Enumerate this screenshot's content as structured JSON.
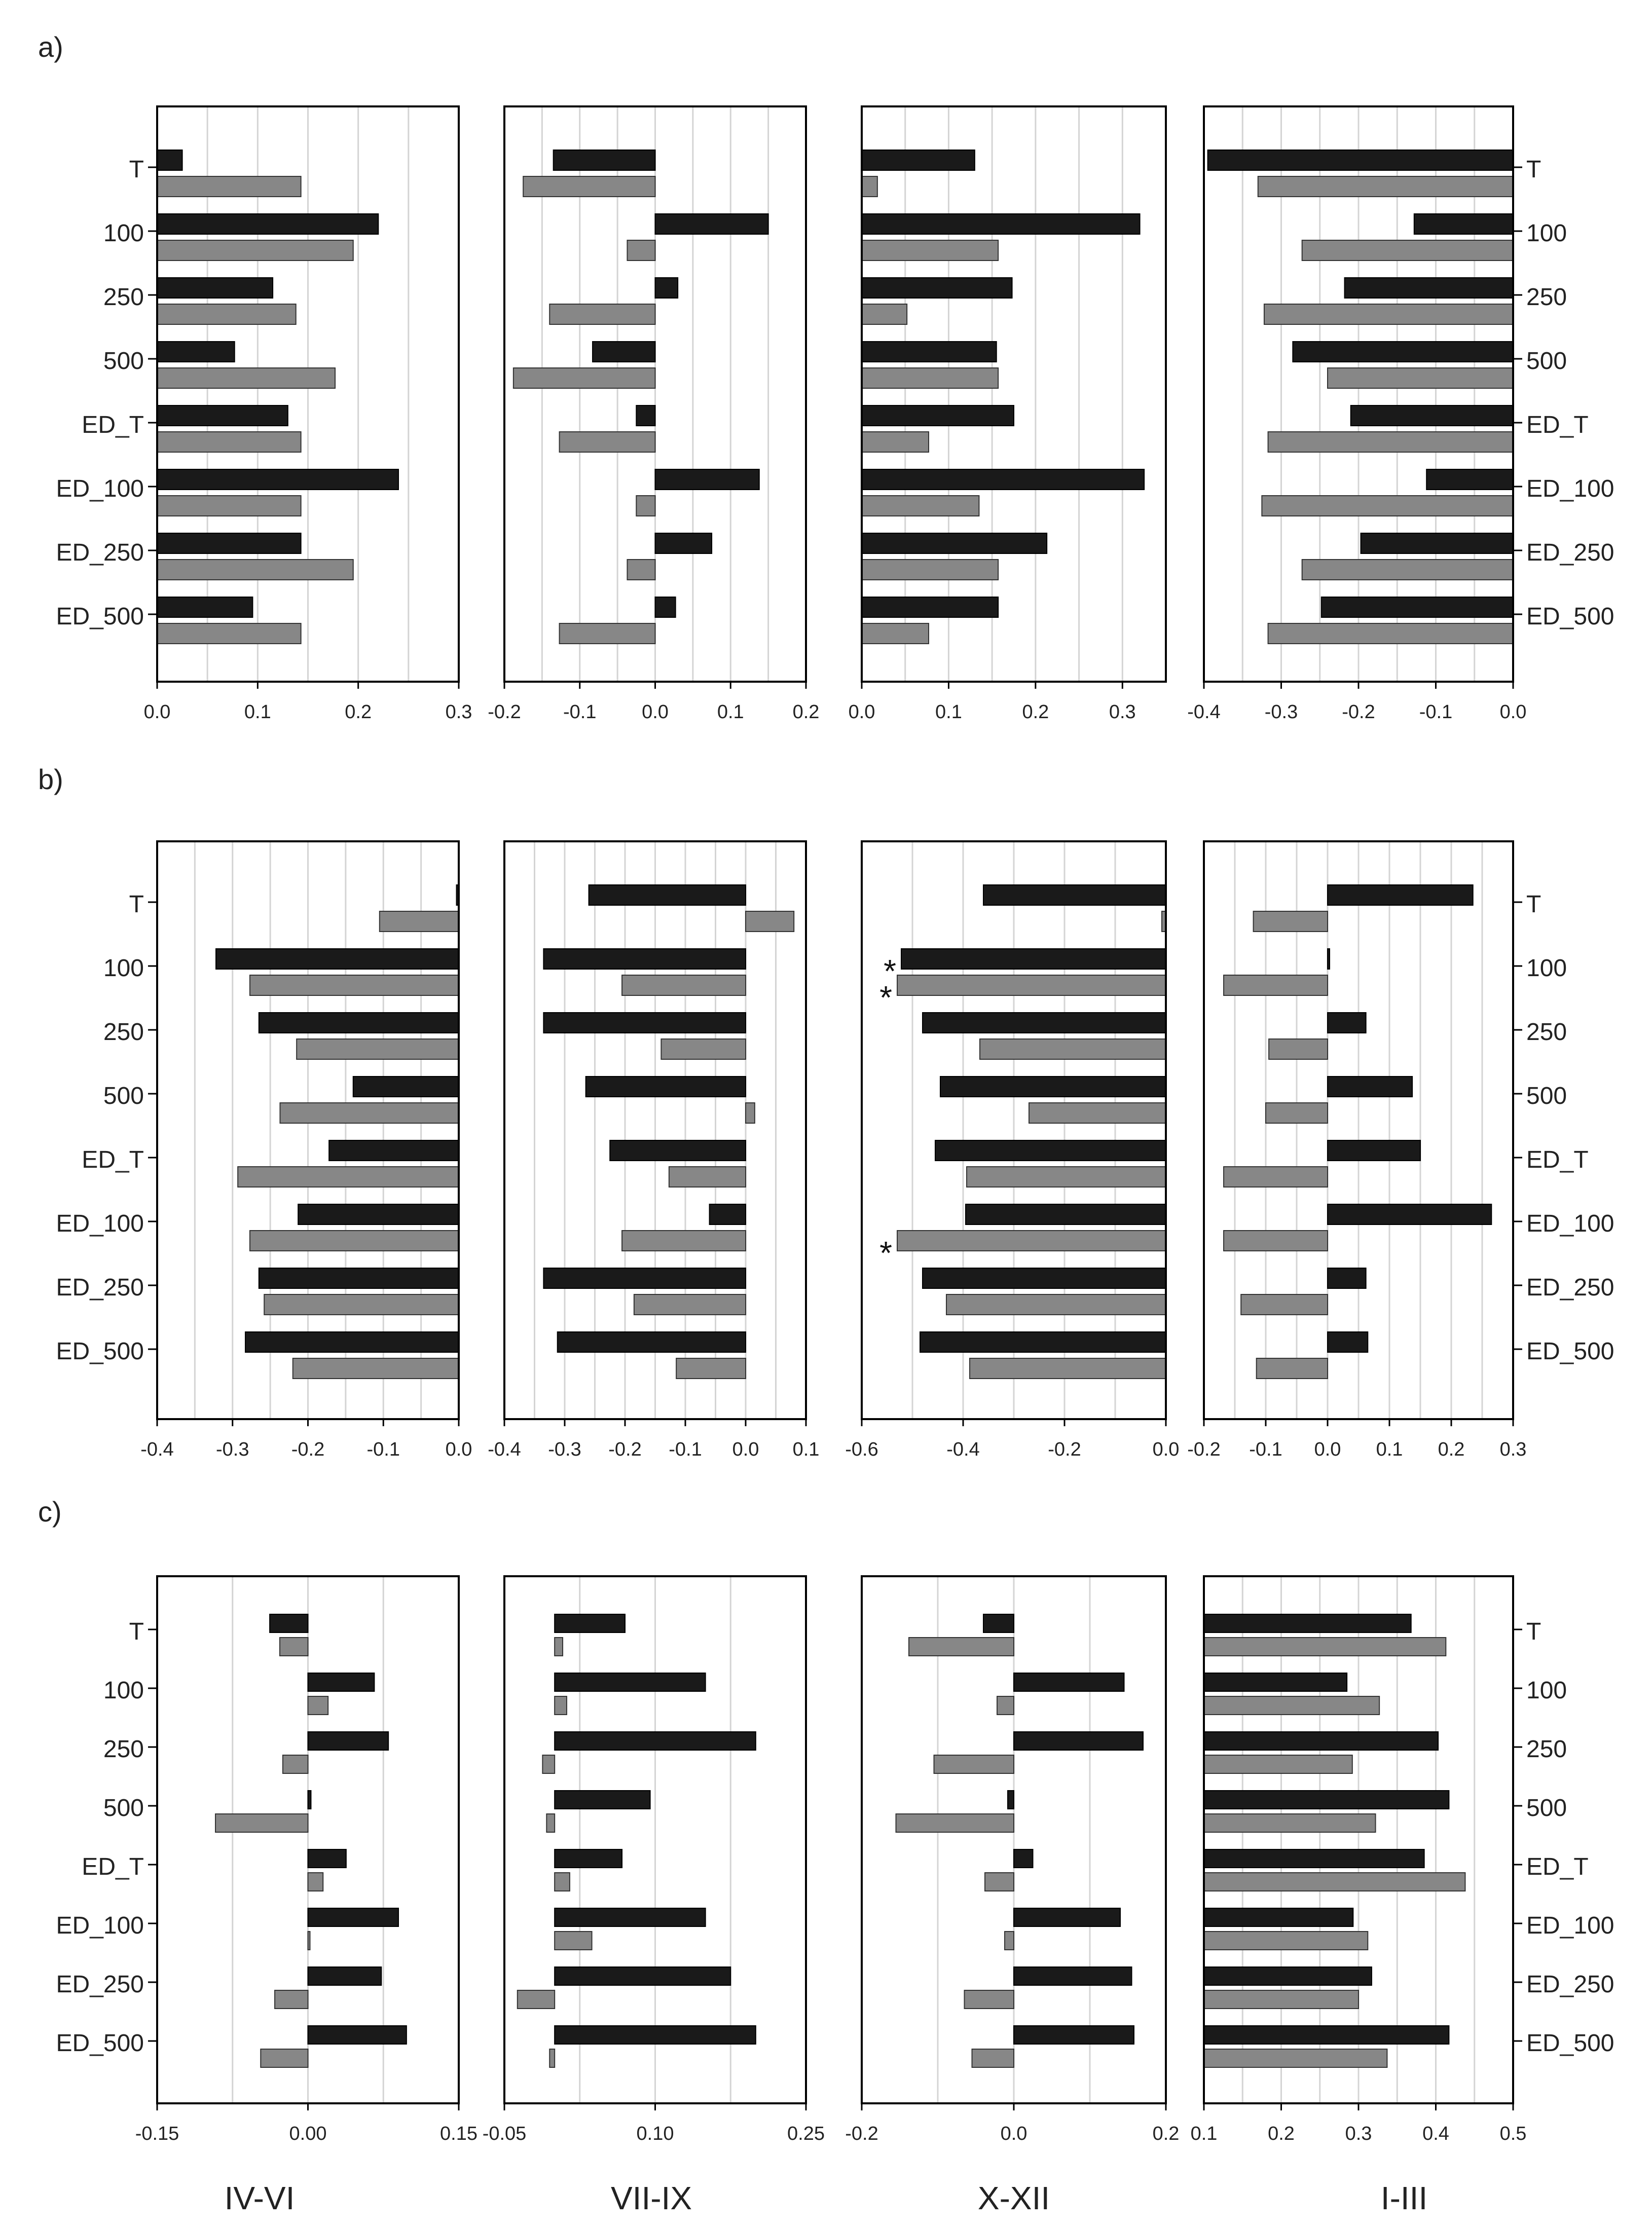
{
  "figure": {
    "row_labels": [
      "a)",
      "b)",
      "c)"
    ],
    "season_labels": [
      "IV-VI",
      "VII-IX",
      "X-XII",
      "I-III"
    ]
  },
  "colors": {
    "series_black": "#1a1a1a",
    "series_gray": "#878787",
    "grid": "#d4d4d4",
    "frame": "#000000"
  },
  "chart_data": [
    {
      "type": "bar",
      "orientation": "horizontal",
      "row": "a",
      "season": "IV-VI",
      "categories": [
        "T",
        "100",
        "250",
        "500",
        "ED_T",
        "ED_100",
        "ED_250",
        "ED_500"
      ],
      "xlim": [
        0,
        0.3
      ],
      "xticks": [
        "0.0",
        "0.1",
        "0.2",
        "0.3"
      ],
      "series": [
        {
          "color": "black",
          "values": [
            0.025,
            0.22,
            0.115,
            0.077,
            0.13,
            0.24,
            0.143,
            0.095
          ]
        },
        {
          "color": "gray",
          "values": [
            0.143,
            0.195,
            0.138,
            0.177,
            0.143,
            0.143,
            0.195,
            0.143
          ]
        }
      ],
      "grid": true,
      "category_labels_side": "left"
    },
    {
      "type": "bar",
      "orientation": "horizontal",
      "row": "a",
      "season": "VII-IX",
      "categories": [
        "T",
        "100",
        "250",
        "500",
        "ED_T",
        "ED_100",
        "ED_250",
        "ED_500"
      ],
      "xlim": [
        -0.2,
        0.2
      ],
      "xticks": [
        "-0.2",
        "-0.1",
        "0.0",
        "0.1",
        "0.2"
      ],
      "series": [
        {
          "color": "black",
          "values": [
            -0.135,
            0.15,
            0.03,
            -0.083,
            -0.025,
            0.138,
            0.075,
            0.027
          ]
        },
        {
          "color": "gray",
          "values": [
            -0.175,
            -0.037,
            -0.14,
            -0.188,
            -0.127,
            -0.025,
            -0.037,
            -0.127
          ]
        }
      ],
      "grid": true,
      "category_labels_side": "none"
    },
    {
      "type": "bar",
      "orientation": "horizontal",
      "row": "a",
      "season": "X-XII",
      "categories": [
        "T",
        "100",
        "250",
        "500",
        "ED_T",
        "ED_100",
        "ED_250",
        "ED_500"
      ],
      "xlim": [
        0,
        0.35
      ],
      "xticks": [
        "0.0",
        "0.1",
        "0.2",
        "0.3"
      ],
      "series": [
        {
          "color": "black",
          "values": [
            0.13,
            0.32,
            0.173,
            0.155,
            0.175,
            0.325,
            0.213,
            0.157
          ]
        },
        {
          "color": "gray",
          "values": [
            0.018,
            0.157,
            0.052,
            0.157,
            0.077,
            0.135,
            0.157,
            0.077
          ]
        }
      ],
      "grid": true,
      "category_labels_side": "none"
    },
    {
      "type": "bar",
      "orientation": "horizontal",
      "row": "a",
      "season": "I-III",
      "categories": [
        "T",
        "100",
        "250",
        "500",
        "ED_T",
        "ED_100",
        "ED_250",
        "ED_500"
      ],
      "xlim": [
        -0.4,
        0
      ],
      "xticks": [
        "-0.4",
        "-0.3",
        "-0.2",
        "-0.1",
        "0.0"
      ],
      "series": [
        {
          "color": "black",
          "values": [
            -0.395,
            -0.128,
            -0.218,
            -0.285,
            -0.21,
            -0.112,
            -0.197,
            -0.248
          ]
        },
        {
          "color": "gray",
          "values": [
            -0.33,
            -0.273,
            -0.322,
            -0.24,
            -0.317,
            -0.325,
            -0.273,
            -0.317
          ]
        }
      ],
      "grid": true,
      "category_labels_side": "right"
    },
    {
      "type": "bar",
      "orientation": "horizontal",
      "row": "b",
      "season": "IV-VI",
      "categories": [
        "T",
        "100",
        "250",
        "500",
        "ED_T",
        "ED_100",
        "ED_250",
        "ED_500"
      ],
      "xlim": [
        -0.4,
        0
      ],
      "xticks": [
        "-0.4",
        "-0.3",
        "-0.2",
        "-0.1",
        "0.0"
      ],
      "series": [
        {
          "color": "black",
          "values": [
            -0.003,
            -0.322,
            -0.265,
            -0.14,
            -0.172,
            -0.213,
            -0.265,
            -0.283
          ]
        },
        {
          "color": "gray",
          "values": [
            -0.105,
            -0.277,
            -0.215,
            -0.237,
            -0.293,
            -0.277,
            -0.258,
            -0.22
          ]
        }
      ],
      "grid": true,
      "category_labels_side": "left"
    },
    {
      "type": "bar",
      "orientation": "horizontal",
      "row": "b",
      "season": "VII-IX",
      "categories": [
        "T",
        "100",
        "250",
        "500",
        "ED_T",
        "ED_100",
        "ED_250",
        "ED_500"
      ],
      "xlim": [
        -0.4,
        0.1
      ],
      "xticks": [
        "-0.4",
        "-0.3",
        "-0.2",
        "-0.1",
        "0.0",
        "0.1"
      ],
      "series": [
        {
          "color": "black",
          "values": [
            -0.26,
            -0.335,
            -0.335,
            -0.265,
            -0.225,
            -0.06,
            -0.335,
            -0.312
          ]
        },
        {
          "color": "gray",
          "values": [
            0.08,
            -0.205,
            -0.14,
            0.015,
            -0.127,
            -0.205,
            -0.185,
            -0.115
          ]
        }
      ],
      "grid": true,
      "category_labels_side": "none"
    },
    {
      "type": "bar",
      "orientation": "horizontal",
      "row": "b",
      "season": "X-XII",
      "categories": [
        "T",
        "100",
        "250",
        "500",
        "ED_T",
        "ED_100",
        "ED_250",
        "ED_500"
      ],
      "xlim": [
        -0.6,
        0
      ],
      "xticks": [
        "-0.6",
        "-0.4",
        "-0.2",
        "0.0"
      ],
      "series": [
        {
          "color": "black",
          "values": [
            -0.36,
            -0.522,
            -0.48,
            -0.445,
            -0.455,
            -0.395,
            -0.48,
            -0.485
          ]
        },
        {
          "color": "gray",
          "values": [
            -0.008,
            -0.53,
            -0.367,
            -0.27,
            -0.393,
            -0.53,
            -0.433,
            -0.387
          ]
        }
      ],
      "annotations": [
        {
          "text": "*",
          "category": "100",
          "series": "black"
        },
        {
          "text": "*",
          "category": "100",
          "series": "gray"
        },
        {
          "text": "*",
          "category": "ED_100",
          "series": "gray"
        }
      ],
      "grid": true,
      "category_labels_side": "none"
    },
    {
      "type": "bar",
      "orientation": "horizontal",
      "row": "b",
      "season": "I-III",
      "categories": [
        "T",
        "100",
        "250",
        "500",
        "ED_T",
        "ED_100",
        "ED_250",
        "ED_500"
      ],
      "xlim": [
        -0.2,
        0.3
      ],
      "xticks": [
        "-0.2",
        "-0.1",
        "0.0",
        "0.1",
        "0.2",
        "0.3"
      ],
      "series": [
        {
          "color": "black",
          "values": [
            0.235,
            0.003,
            0.062,
            0.137,
            0.15,
            0.265,
            0.062,
            0.065
          ]
        },
        {
          "color": "gray",
          "values": [
            -0.12,
            -0.168,
            -0.095,
            -0.1,
            -0.168,
            -0.168,
            -0.14,
            -0.115
          ]
        }
      ],
      "grid": true,
      "category_labels_side": "right"
    },
    {
      "type": "bar",
      "orientation": "horizontal",
      "row": "c",
      "season": "IV-VI",
      "categories": [
        "T",
        "100",
        "250",
        "500",
        "ED_T",
        "ED_100",
        "ED_250",
        "ED_500"
      ],
      "xlim": [
        -0.15,
        0.15
      ],
      "xticks": [
        "-0.15",
        "0.00",
        "0.15"
      ],
      "series": [
        {
          "color": "black",
          "values": [
            -0.038,
            0.066,
            0.08,
            0.003,
            0.038,
            0.09,
            0.073,
            0.098
          ]
        },
        {
          "color": "gray",
          "values": [
            -0.028,
            0.02,
            -0.025,
            -0.092,
            0.015,
            0.002,
            -0.033,
            -0.047
          ]
        }
      ],
      "grid": true,
      "category_labels_side": "left"
    },
    {
      "type": "bar",
      "orientation": "horizontal",
      "row": "c",
      "season": "VII-IX",
      "categories": [
        "T",
        "100",
        "250",
        "500",
        "ED_T",
        "ED_100",
        "ED_250",
        "ED_500"
      ],
      "xlim": [
        -0.05,
        0.25
      ],
      "xticks": [
        "-0.05",
        "0.10",
        "0.25"
      ],
      "series": [
        {
          "color": "black",
          "values": [
            0.07,
            0.15,
            0.2,
            0.095,
            0.067,
            0.15,
            0.175,
            0.2
          ]
        },
        {
          "color": "gray",
          "values": [
            0.008,
            0.012,
            -0.012,
            -0.008,
            0.015,
            0.037,
            -0.037,
            -0.005
          ]
        }
      ],
      "grid": true,
      "category_labels_side": "none"
    },
    {
      "type": "bar",
      "orientation": "horizontal",
      "row": "c",
      "season": "X-XII",
      "categories": [
        "T",
        "100",
        "250",
        "500",
        "ED_T",
        "ED_100",
        "ED_250",
        "ED_500"
      ],
      "xlim": [
        -0.2,
        0.2
      ],
      "xticks": [
        "-0.2",
        "0.0",
        "0.2"
      ],
      "series": [
        {
          "color": "black",
          "values": [
            -0.04,
            0.145,
            0.17,
            -0.008,
            0.025,
            0.14,
            0.155,
            0.158
          ]
        },
        {
          "color": "gray",
          "values": [
            -0.138,
            -0.022,
            -0.105,
            -0.155,
            -0.038,
            -0.012,
            -0.065,
            -0.055
          ]
        }
      ],
      "grid": true,
      "category_labels_side": "none"
    },
    {
      "type": "bar",
      "orientation": "horizontal",
      "row": "c",
      "season": "I-III",
      "categories": [
        "T",
        "100",
        "250",
        "500",
        "ED_T",
        "ED_100",
        "ED_250",
        "ED_500"
      ],
      "xlim": [
        0.1,
        0.5
      ],
      "xticks": [
        "0.1",
        "0.2",
        "0.3",
        "0.4",
        "0.5"
      ],
      "series": [
        {
          "color": "black",
          "values": [
            0.368,
            0.285,
            0.403,
            0.417,
            0.385,
            0.293,
            0.317,
            0.417
          ]
        },
        {
          "color": "gray",
          "values": [
            0.413,
            0.327,
            0.292,
            0.322,
            0.438,
            0.312,
            0.3,
            0.337
          ]
        }
      ],
      "grid": true,
      "category_labels_side": "right"
    }
  ]
}
